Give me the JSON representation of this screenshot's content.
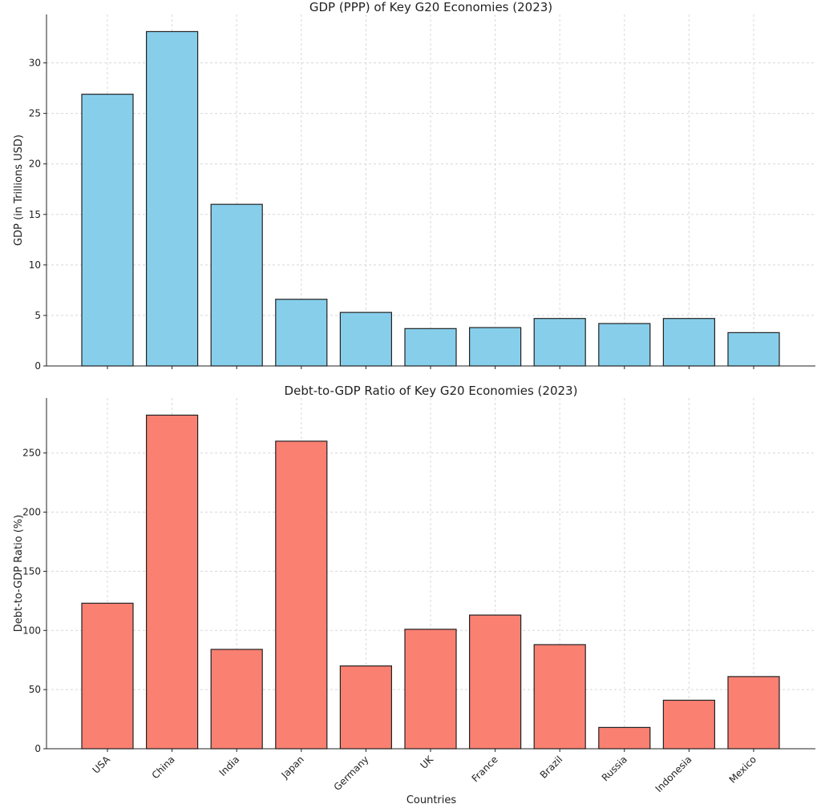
{
  "chart_data": [
    {
      "type": "bar",
      "title": "GDP (PPP) of Key G20 Economies (2023)",
      "xlabel": "",
      "ylabel": "GDP (in Trillions USD)",
      "categories": [
        "USA",
        "China",
        "India",
        "Japan",
        "Germany",
        "UK",
        "France",
        "Brazil",
        "Russia",
        "Indonesia",
        "Mexico"
      ],
      "values": [
        26.9,
        33.1,
        16.0,
        6.6,
        5.3,
        3.7,
        3.8,
        4.7,
        4.2,
        4.7,
        3.3
      ],
      "ylim": [
        0,
        34.8
      ],
      "yticks": [
        0,
        5,
        10,
        15,
        20,
        25,
        30
      ],
      "color": "#87ceeb",
      "grid": true
    },
    {
      "type": "bar",
      "title": "Debt-to-GDP Ratio of Key G20 Economies (2023)",
      "xlabel": "Countries",
      "ylabel": "Debt-to-GDP Ratio (%)",
      "categories": [
        "USA",
        "China",
        "India",
        "Japan",
        "Germany",
        "UK",
        "France",
        "Brazil",
        "Russia",
        "Indonesia",
        "Mexico"
      ],
      "values": [
        123,
        282,
        84,
        260,
        70,
        101,
        113,
        88,
        18,
        41,
        61
      ],
      "ylim": [
        0,
        296.5
      ],
      "yticks": [
        0,
        50,
        100,
        150,
        200,
        250
      ],
      "color": "#fa8072",
      "grid": true
    }
  ]
}
